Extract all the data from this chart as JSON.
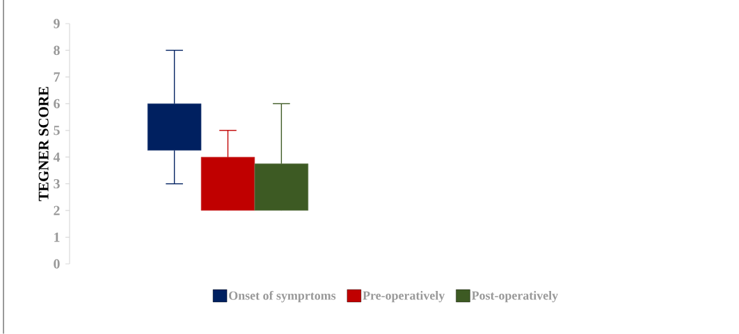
{
  "chart_data": {
    "type": "bar",
    "ylabel": "TEGNER SCORE",
    "categories": [
      null
    ],
    "series": [
      {
        "name": "Onset of symprtoms",
        "color": "#002060",
        "base": [
          4.25
        ],
        "values": [
          1.75
        ],
        "errors": [
          [
            3,
            8
          ]
        ]
      },
      {
        "name": "Pre-operatively",
        "color": "#c00000",
        "base": [
          2
        ],
        "values": [
          2
        ],
        "errors": [
          [
            2,
            5
          ]
        ]
      },
      {
        "name": "Post-operatively",
        "color": "#3d5a23",
        "base": [
          2
        ],
        "values": [
          1.75
        ],
        "errors": [
          [
            2,
            6
          ]
        ]
      }
    ],
    "ylim": [
      0,
      9
    ],
    "yticks": [
      0,
      1,
      2,
      3,
      4,
      5,
      6,
      7,
      8,
      9
    ],
    "legend": "bottom"
  }
}
